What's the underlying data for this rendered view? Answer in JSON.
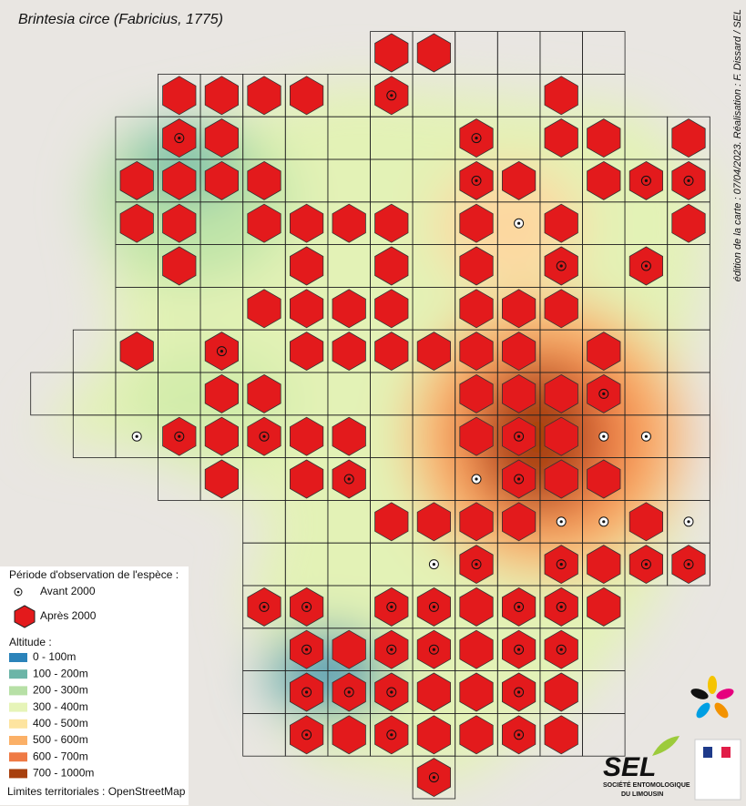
{
  "title": "Brintesia circe (Fabricius, 1775)",
  "credit": "édition de la carte : 07/04/2023. Réalisation : F. Dissard / SEL",
  "legend": {
    "period_title": "Période d'observation de l'espèce :",
    "period_items": [
      "Avant 2000",
      "Après 2000"
    ],
    "altitude_title": "Altitude :",
    "altitude_items": [
      {
        "label": "0 - 100m",
        "color": "#2b83ba"
      },
      {
        "label": "100 - 200m",
        "color": "#6bb5a7"
      },
      {
        "label": "200 - 300m",
        "color": "#b7e0a6"
      },
      {
        "label": "300 - 400m",
        "color": "#e6f4b8"
      },
      {
        "label": "400 - 500m",
        "color": "#fde4a0"
      },
      {
        "label": "500 - 600m",
        "color": "#fbb067"
      },
      {
        "label": "600 - 700m",
        "color": "#ef7a45"
      },
      {
        "label": "700 - 1000m",
        "color": "#a8400e"
      }
    ],
    "limits": "Limites territoriales : OpenStreetMap"
  },
  "logo": {
    "name": "SEL",
    "subtitle_1": "SOCIÉTÉ ENTOMOLOGIQUE",
    "subtitle_2": "DU LIMOUSIN"
  }
}
